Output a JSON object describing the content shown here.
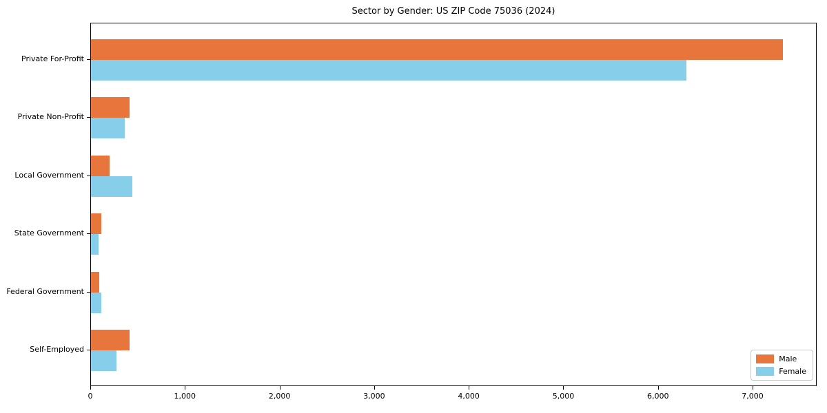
{
  "title": "Sector by Gender: US ZIP Code 75036 (2024)",
  "chart_data": {
    "type": "bar",
    "orientation": "horizontal",
    "title": "Sector by Gender: US ZIP Code 75036 (2024)",
    "categories": [
      "Private For-Profit",
      "Private Non-Profit",
      "Local Government",
      "State Government",
      "Federal Government",
      "Self-Employed"
    ],
    "series": [
      {
        "name": "Male",
        "color": "#e8763c",
        "values": [
          7310,
          410,
          200,
          110,
          90,
          410
        ]
      },
      {
        "name": "Female",
        "color": "#87ceeb",
        "values": [
          6290,
          360,
          440,
          80,
          110,
          270
        ]
      }
    ],
    "xlabel": "",
    "ylabel": "",
    "xlim": [
      0,
      7677
    ],
    "xticks": [
      0,
      1000,
      2000,
      3000,
      4000,
      5000,
      6000,
      7000
    ],
    "xtick_labels": [
      "0",
      "1,000",
      "2,000",
      "3,000",
      "4,000",
      "5,000",
      "6,000",
      "7,000"
    ],
    "grid": false,
    "legend": {
      "position": "lower right"
    }
  },
  "colors": {
    "male": "#e8763c",
    "female": "#87ceeb",
    "axis": "#000000",
    "background": "#ffffff",
    "legend_border": "#c8c8c8"
  }
}
